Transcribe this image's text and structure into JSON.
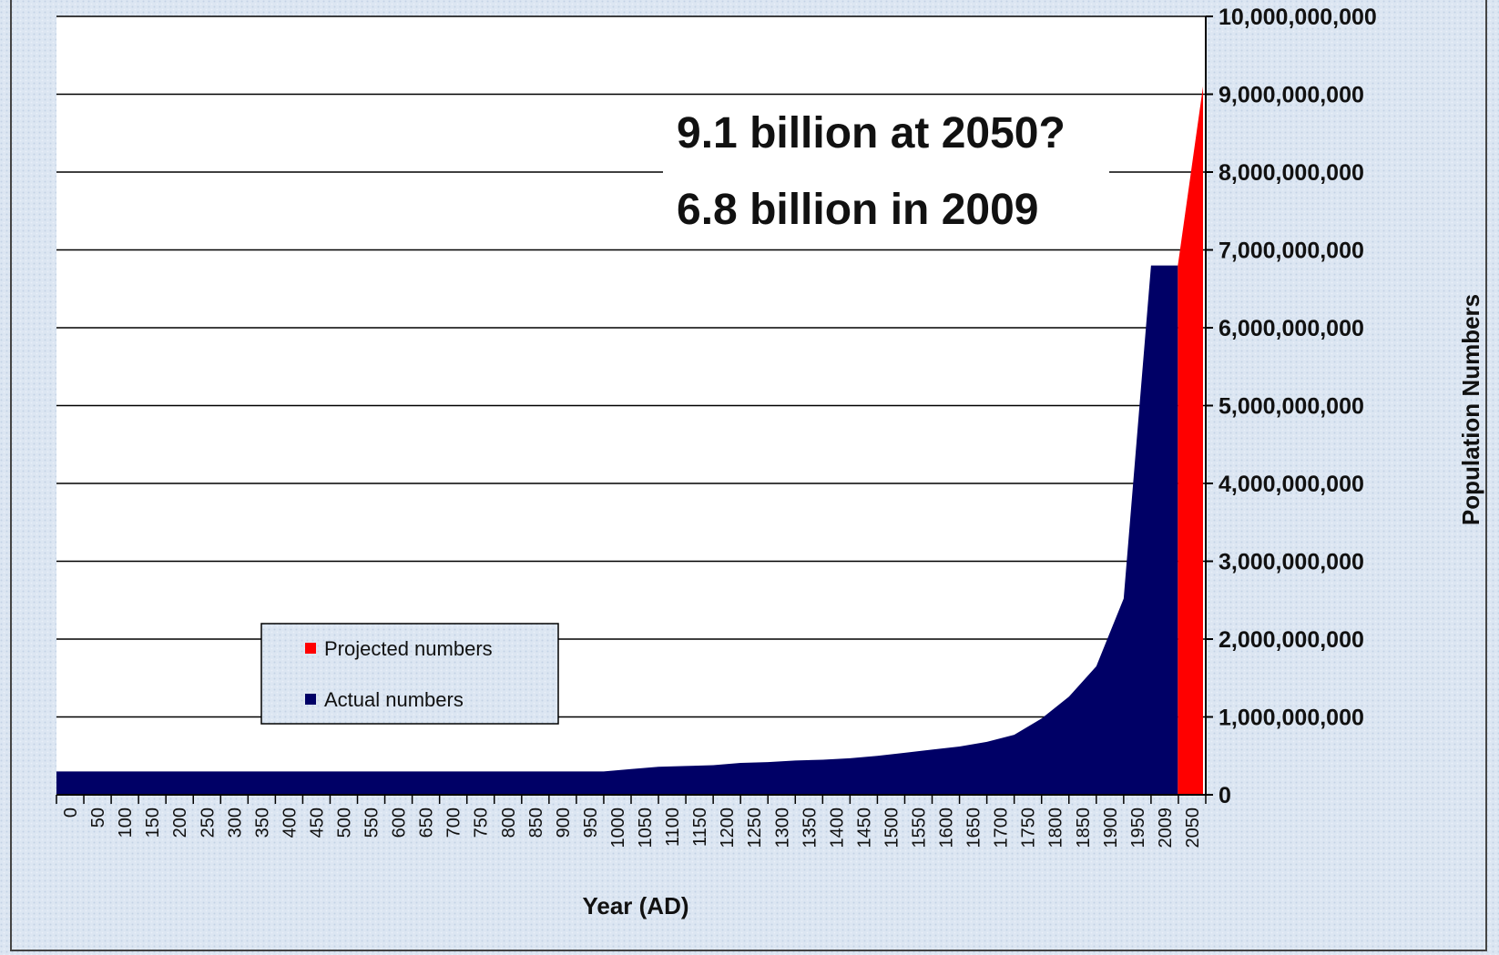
{
  "chart_data": {
    "type": "area",
    "xlabel": "Year (AD)",
    "ylabel": "Population Numbers",
    "ylim": [
      0,
      10000000000
    ],
    "y_ticks": [
      0,
      1000000000,
      2000000000,
      3000000000,
      4000000000,
      5000000000,
      6000000000,
      7000000000,
      8000000000,
      9000000000,
      10000000000
    ],
    "y_tick_labels": [
      "0",
      "1,000,000,000",
      "2,000,000,000",
      "3,000,000,000",
      "4,000,000,000",
      "5,000,000,000",
      "6,000,000,000",
      "7,000,000,000",
      "8,000,000,000",
      "9,000,000,000",
      "10,000,000,000"
    ],
    "categories": [
      "0",
      "50",
      "100",
      "150",
      "200",
      "250",
      "300",
      "350",
      "400",
      "450",
      "500",
      "550",
      "600",
      "650",
      "700",
      "750",
      "800",
      "850",
      "900",
      "950",
      "1000",
      "1050",
      "1100",
      "1150",
      "1200",
      "1250",
      "1300",
      "1350",
      "1400",
      "1450",
      "1500",
      "1550",
      "1600",
      "1650",
      "1700",
      "1750",
      "1800",
      "1850",
      "1900",
      "1950",
      "2009",
      "2050"
    ],
    "series": [
      {
        "name": "Actual numbers",
        "color": "#000066",
        "values": [
          300000000,
          300000000,
          300000000,
          300000000,
          300000000,
          300000000,
          300000000,
          300000000,
          300000000,
          300000000,
          300000000,
          300000000,
          300000000,
          300000000,
          300000000,
          300000000,
          300000000,
          300000000,
          300000000,
          300000000,
          300000000,
          330000000,
          360000000,
          370000000,
          380000000,
          410000000,
          420000000,
          440000000,
          450000000,
          470000000,
          500000000,
          540000000,
          580000000,
          620000000,
          680000000,
          770000000,
          980000000,
          1260000000,
          1650000000,
          2520000000,
          6800000000,
          null
        ]
      },
      {
        "name": "Projected numbers",
        "color": "#ff0000",
        "values": [
          null,
          null,
          null,
          null,
          null,
          null,
          null,
          null,
          null,
          null,
          null,
          null,
          null,
          null,
          null,
          null,
          null,
          null,
          null,
          null,
          null,
          null,
          null,
          null,
          null,
          null,
          null,
          null,
          null,
          null,
          null,
          null,
          null,
          null,
          null,
          null,
          null,
          null,
          null,
          null,
          6800000000,
          9100000000
        ]
      }
    ],
    "annotations": [
      "9.1 billion at 2050?",
      "6.8 billion in 2009"
    ],
    "grid": true,
    "legend": "lower-left"
  }
}
